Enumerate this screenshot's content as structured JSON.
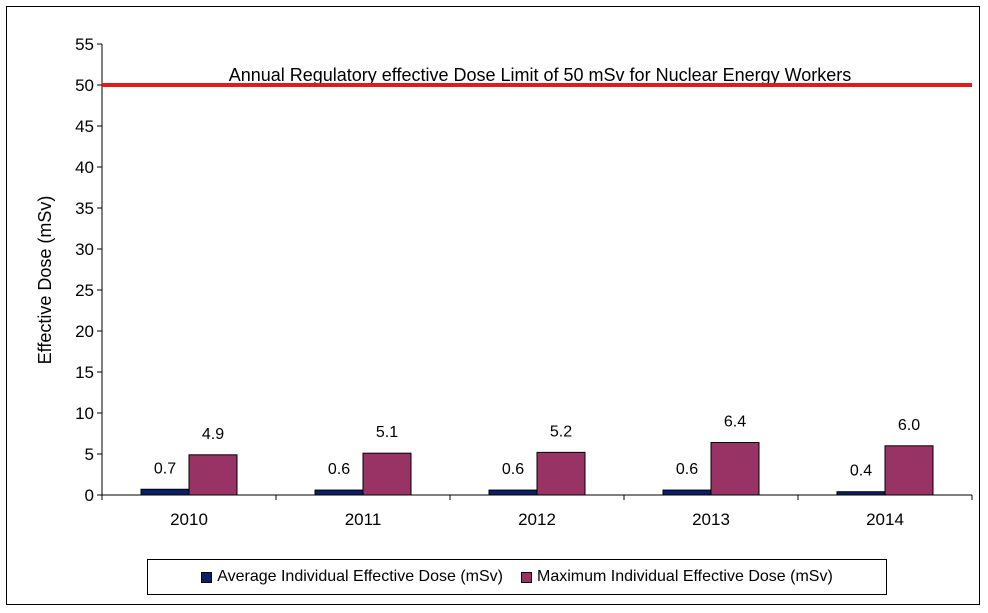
{
  "chart_data": {
    "type": "bar",
    "categories": [
      "2010",
      "2011",
      "2012",
      "2013",
      "2014"
    ],
    "series": [
      {
        "name": "Average Individual Effective Dose (mSv)",
        "values": [
          0.7,
          0.6,
          0.6,
          0.6,
          0.4
        ],
        "labels": [
          "0.7",
          "0.6",
          "0.6",
          "0.6",
          "0.4"
        ],
        "color": "#0b1f66"
      },
      {
        "name": "Maximum Individual Effective Dose (mSv)",
        "values": [
          4.9,
          5.1,
          5.2,
          6.4,
          6.0
        ],
        "labels": [
          "4.9",
          "5.1",
          "5.2",
          "6.4",
          "6.0"
        ],
        "color": "#993366"
      }
    ],
    "ylabel": "Effective Dose (mSv)",
    "xlabel": "",
    "ylim": [
      0,
      55
    ],
    "yticks": [
      0,
      5,
      10,
      15,
      20,
      25,
      30,
      35,
      40,
      45,
      50,
      55
    ],
    "grid": false,
    "legend_position": "bottom",
    "reference_line": {
      "value": 50,
      "label": "Annual Regulatory effective Dose Limit of 50 mSv for Nuclear Energy Workers",
      "color": "#e31a1c"
    }
  }
}
